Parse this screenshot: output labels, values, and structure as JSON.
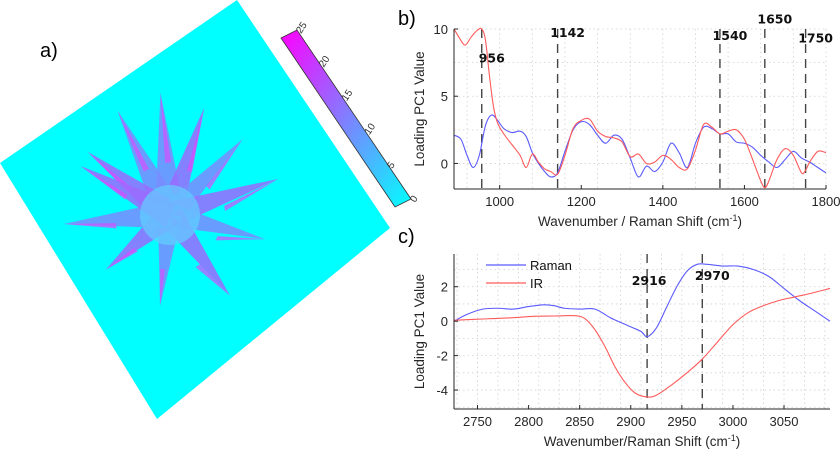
{
  "panels": {
    "a_label": "a)",
    "b_label": "b)",
    "c_label": "c)"
  },
  "chart_data": [
    {
      "id": "a",
      "type": "heatmap",
      "title": "",
      "description": "3D surface rendering of a radial star-shaped pattern with ~12 arms, colored by height on a cyan-to-magenta colormap",
      "colorbar": {
        "ticks": [
          "0",
          "5",
          "10",
          "15",
          "20",
          "25"
        ],
        "range": [
          0,
          25
        ],
        "colors": [
          "#00ffff",
          "#ff00ff"
        ]
      }
    },
    {
      "id": "b",
      "type": "line",
      "xlabel": "Wavenumber / Raman Shift (cm",
      "xlabel_sup": "-1",
      "xlabel_end": ")",
      "ylabel": "Loading PC1 Value",
      "xlim": [
        888,
        1800
      ],
      "ylim": [
        -1.9,
        10
      ],
      "xticks": [
        1000,
        1200,
        1400,
        1600,
        1800
      ],
      "yticks": [
        0,
        5,
        10
      ],
      "grid": true,
      "vlines": [
        956,
        1142,
        1540,
        1650,
        1750
      ],
      "annotations": [
        {
          "text": "956",
          "x": 956,
          "y": 7.5
        },
        {
          "text": "1142",
          "x": 1142,
          "y": 9.4
        },
        {
          "text": "1540",
          "x": 1540,
          "y": 9.2
        },
        {
          "text": "1650",
          "x": 1650,
          "y": 10.4
        },
        {
          "text": "1750",
          "x": 1750,
          "y": 9.0
        }
      ],
      "series": [
        {
          "name": "Raman",
          "color": "#5a5aff",
          "x": [
            888,
            905,
            920,
            935,
            950,
            965,
            980,
            995,
            1010,
            1030,
            1050,
            1065,
            1080,
            1095,
            1110,
            1125,
            1142,
            1160,
            1180,
            1200,
            1220,
            1240,
            1260,
            1280,
            1300,
            1320,
            1340,
            1360,
            1380,
            1400,
            1420,
            1440,
            1460,
            1480,
            1500,
            1520,
            1540,
            1560,
            1580,
            1600,
            1620,
            1640,
            1660,
            1680,
            1700,
            1720,
            1740,
            1760,
            1780,
            1800
          ],
          "y": [
            2.1,
            1.8,
            0.6,
            -0.3,
            0.6,
            2.8,
            3.6,
            3.2,
            2.6,
            2.3,
            2.4,
            2.0,
            0.8,
            0.0,
            -0.6,
            -1.0,
            -0.7,
            0.9,
            2.5,
            3.1,
            2.9,
            2.1,
            1.5,
            2.1,
            1.8,
            0.4,
            -1.0,
            -0.2,
            -0.6,
            0.1,
            1.5,
            0.8,
            -0.3,
            1.5,
            2.7,
            2.6,
            2.2,
            2.2,
            1.6,
            1.5,
            1.2,
            0.6,
            0.1,
            -0.3,
            0.3,
            0.9,
            0.4,
            0.1,
            -0.3,
            -0.7
          ]
        },
        {
          "name": "IR",
          "color": "#ff5a5a",
          "x": [
            888,
            900,
            915,
            930,
            945,
            956,
            965,
            975,
            985,
            995,
            1010,
            1030,
            1050,
            1065,
            1080,
            1095,
            1110,
            1125,
            1142,
            1160,
            1180,
            1200,
            1220,
            1240,
            1260,
            1280,
            1300,
            1320,
            1340,
            1360,
            1380,
            1400,
            1420,
            1440,
            1460,
            1480,
            1500,
            1520,
            1540,
            1560,
            1580,
            1600,
            1620,
            1640,
            1650,
            1660,
            1680,
            1700,
            1720,
            1740,
            1750,
            1760,
            1780,
            1800
          ],
          "y": [
            10.0,
            9.4,
            8.8,
            9.4,
            9.9,
            10.0,
            9.2,
            6.5,
            4.2,
            3.0,
            2.2,
            1.4,
            0.6,
            -0.3,
            0.7,
            0.1,
            -0.4,
            -0.6,
            -0.8,
            0.6,
            2.6,
            3.2,
            3.3,
            2.4,
            2.0,
            1.9,
            1.6,
            0.5,
            0.7,
            0.0,
            0.1,
            0.6,
            0.3,
            -0.3,
            -0.4,
            1.0,
            2.9,
            2.7,
            2.2,
            2.4,
            2.5,
            1.8,
            0.3,
            -1.3,
            -1.8,
            -1.3,
            0.3,
            1.1,
            0.6,
            -0.7,
            -0.5,
            0.1,
            0.9,
            0.8
          ]
        }
      ]
    },
    {
      "id": "c",
      "type": "line",
      "xlabel": "Wavenumber/Raman Shift (cm",
      "xlabel_sup": "-1",
      "xlabel_end": ")",
      "ylabel": "Loading PC1 Value",
      "xlim": [
        2727,
        3095
      ],
      "ylim": [
        -5.1,
        3.9
      ],
      "xticks": [
        2750,
        2800,
        2850,
        2900,
        2950,
        3000,
        3050
      ],
      "yticks": [
        -4,
        -2,
        0,
        2
      ],
      "grid": true,
      "legend": {
        "position": "top-left",
        "entries": [
          "Raman",
          "IR"
        ]
      },
      "vlines": [
        2916,
        2970
      ],
      "annotations": [
        {
          "text": "2916",
          "x": 2916,
          "y": 2.1
        },
        {
          "text": "2970",
          "x": 2970,
          "y": 2.4
        }
      ],
      "series": [
        {
          "name": "Raman",
          "color": "#5a5aff",
          "x": [
            2727,
            2740,
            2755,
            2770,
            2785,
            2800,
            2815,
            2825,
            2835,
            2850,
            2865,
            2880,
            2895,
            2910,
            2916,
            2925,
            2935,
            2945,
            2955,
            2965,
            2975,
            2990,
            3005,
            3020,
            3035,
            3050,
            3065,
            3080,
            3095
          ],
          "y": [
            0.0,
            0.4,
            0.7,
            0.75,
            0.7,
            0.85,
            0.95,
            0.9,
            0.75,
            0.7,
            0.7,
            0.2,
            -0.2,
            -0.6,
            -0.9,
            -0.4,
            0.8,
            2.0,
            2.9,
            3.3,
            3.3,
            3.2,
            3.2,
            3.0,
            2.6,
            1.9,
            1.2,
            0.6,
            0.0
          ]
        },
        {
          "name": "IR",
          "color": "#ff5a5a",
          "x": [
            2727,
            2745,
            2765,
            2785,
            2805,
            2825,
            2845,
            2855,
            2865,
            2875,
            2885,
            2895,
            2905,
            2916,
            2925,
            2940,
            2955,
            2970,
            2985,
            3000,
            3015,
            3030,
            3045,
            3060,
            3075,
            3095
          ],
          "y": [
            0.05,
            0.1,
            0.15,
            0.2,
            0.28,
            0.3,
            0.32,
            0.15,
            -0.5,
            -1.5,
            -2.7,
            -3.6,
            -4.2,
            -4.4,
            -4.3,
            -3.7,
            -3.0,
            -2.2,
            -1.2,
            -0.2,
            0.5,
            0.9,
            1.2,
            1.4,
            1.6,
            1.9
          ]
        }
      ]
    }
  ]
}
